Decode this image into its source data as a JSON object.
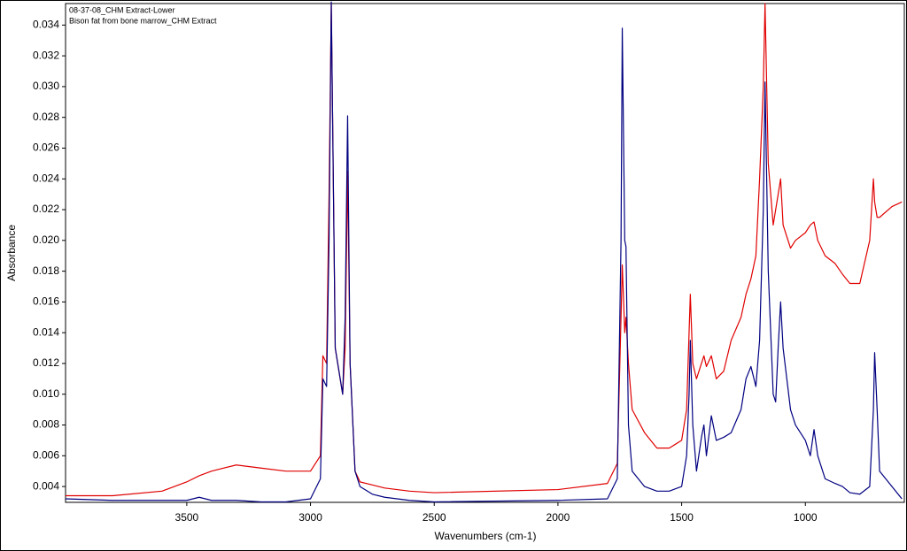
{
  "chart_data": {
    "type": "line",
    "xlabel": "Wavenumbers (cm-1)",
    "ylabel": "Absorbance",
    "x": [
      3990,
      3800,
      3600,
      3500,
      3450,
      3400,
      3300,
      3200,
      3100,
      3000,
      2960,
      2950,
      2935,
      2925,
      2916,
      2900,
      2870,
      2860,
      2850,
      2840,
      2820,
      2800,
      2750,
      2700,
      2600,
      2500,
      2000,
      1800,
      1760,
      1745,
      1740,
      1730,
      1725,
      1715,
      1700,
      1650,
      1600,
      1550,
      1500,
      1480,
      1470,
      1465,
      1455,
      1440,
      1420,
      1410,
      1400,
      1380,
      1360,
      1330,
      1300,
      1260,
      1240,
      1220,
      1200,
      1185,
      1170,
      1163,
      1150,
      1130,
      1120,
      1110,
      1100,
      1090,
      1060,
      1040,
      1000,
      980,
      965,
      950,
      920,
      880,
      850,
      820,
      780,
      740,
      725,
      720,
      710,
      700,
      650,
      610
    ],
    "series": [
      {
        "name": "08-37-08_CHM Extract-Lower",
        "color": "#e00000",
        "values": [
          0.0034,
          0.0034,
          0.0037,
          0.0043,
          0.0047,
          0.005,
          0.0054,
          0.0052,
          0.005,
          0.005,
          0.006,
          0.0125,
          0.012,
          0.023,
          0.0354,
          0.013,
          0.01,
          0.013,
          0.0245,
          0.012,
          0.005,
          0.0043,
          0.0041,
          0.0039,
          0.0037,
          0.0036,
          0.0038,
          0.0042,
          0.0055,
          0.015,
          0.0184,
          0.014,
          0.015,
          0.012,
          0.009,
          0.0075,
          0.0065,
          0.0065,
          0.007,
          0.009,
          0.014,
          0.0165,
          0.012,
          0.011,
          0.012,
          0.0125,
          0.0118,
          0.0125,
          0.011,
          0.0115,
          0.0135,
          0.015,
          0.0165,
          0.0175,
          0.019,
          0.024,
          0.03,
          0.0354,
          0.025,
          0.021,
          0.022,
          0.023,
          0.024,
          0.021,
          0.0195,
          0.02,
          0.0205,
          0.021,
          0.0212,
          0.02,
          0.019,
          0.0185,
          0.0178,
          0.0172,
          0.0172,
          0.02,
          0.024,
          0.0225,
          0.0215,
          0.0215,
          0.0222,
          0.0225
        ]
      },
      {
        "name": "Bison fat from bone marrow_CHM Extract",
        "color": "#000080",
        "values": [
          0.0032,
          0.0031,
          0.0031,
          0.0031,
          0.0033,
          0.0031,
          0.0031,
          0.003,
          0.003,
          0.0032,
          0.0045,
          0.011,
          0.0105,
          0.02,
          0.0355,
          0.013,
          0.01,
          0.015,
          0.0281,
          0.012,
          0.005,
          0.004,
          0.0035,
          0.0033,
          0.0031,
          0.003,
          0.0031,
          0.0032,
          0.0045,
          0.02,
          0.0338,
          0.02,
          0.0196,
          0.008,
          0.005,
          0.004,
          0.0037,
          0.0037,
          0.004,
          0.006,
          0.01,
          0.0135,
          0.008,
          0.005,
          0.0072,
          0.008,
          0.006,
          0.0086,
          0.007,
          0.0072,
          0.0075,
          0.009,
          0.011,
          0.0118,
          0.0105,
          0.0135,
          0.022,
          0.0303,
          0.018,
          0.01,
          0.0095,
          0.013,
          0.016,
          0.013,
          0.009,
          0.008,
          0.007,
          0.006,
          0.0077,
          0.006,
          0.0045,
          0.0042,
          0.004,
          0.0036,
          0.0035,
          0.004,
          0.009,
          0.0127,
          0.009,
          0.005,
          0.004,
          0.0032
        ]
      }
    ],
    "xlim": [
      3990,
      600
    ],
    "ylim": [
      0.00297,
      0.0354
    ],
    "xticks": [
      3500,
      3000,
      2500,
      2000,
      1500,
      1000
    ],
    "yticks": [
      0.004,
      0.006,
      0.008,
      {
        "value": 0.01,
        "label": "0.010"
      },
      0.012,
      0.014,
      0.016,
      0.018,
      {
        "value": 0.02,
        "label": "0.020"
      },
      0.022,
      0.024,
      0.026,
      0.028,
      {
        "value": 0.03,
        "label": "0.030"
      },
      0.032,
      0.034
    ],
    "legend": "top-left"
  }
}
